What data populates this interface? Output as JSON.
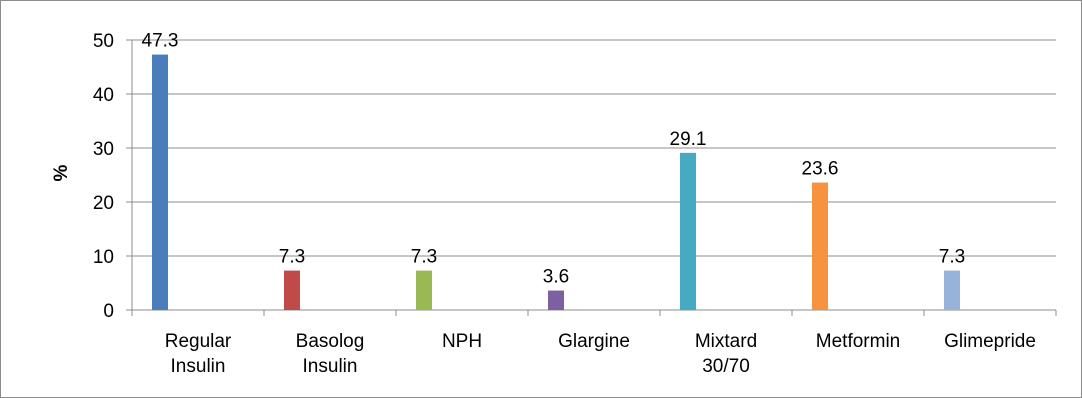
{
  "chart_data": {
    "type": "bar",
    "categories": [
      [
        "Regular",
        "Insulin"
      ],
      [
        "Basolog",
        "Insulin"
      ],
      [
        "NPH"
      ],
      [
        "Glargine"
      ],
      [
        "Mixtard",
        "30/70"
      ],
      [
        "Metformin"
      ],
      [
        "Glimepride"
      ]
    ],
    "values": [
      47.3,
      7.3,
      7.3,
      3.6,
      29.1,
      23.6,
      7.3
    ],
    "value_labels": [
      "47.3",
      "7.3",
      "7.3",
      "3.6",
      "29.1",
      "23.6",
      "7.3"
    ],
    "colors": [
      "#4a7ebb",
      "#be4b48",
      "#98b954",
      "#7d60a0",
      "#46aac5",
      "#f69240",
      "#97b3d9"
    ],
    "ylabel": "%",
    "ylim": [
      0,
      50
    ],
    "yticks": [
      "0",
      "10",
      "20",
      "30",
      "40",
      "50"
    ],
    "grid": true,
    "gridline_color": "#8c8c8c"
  }
}
